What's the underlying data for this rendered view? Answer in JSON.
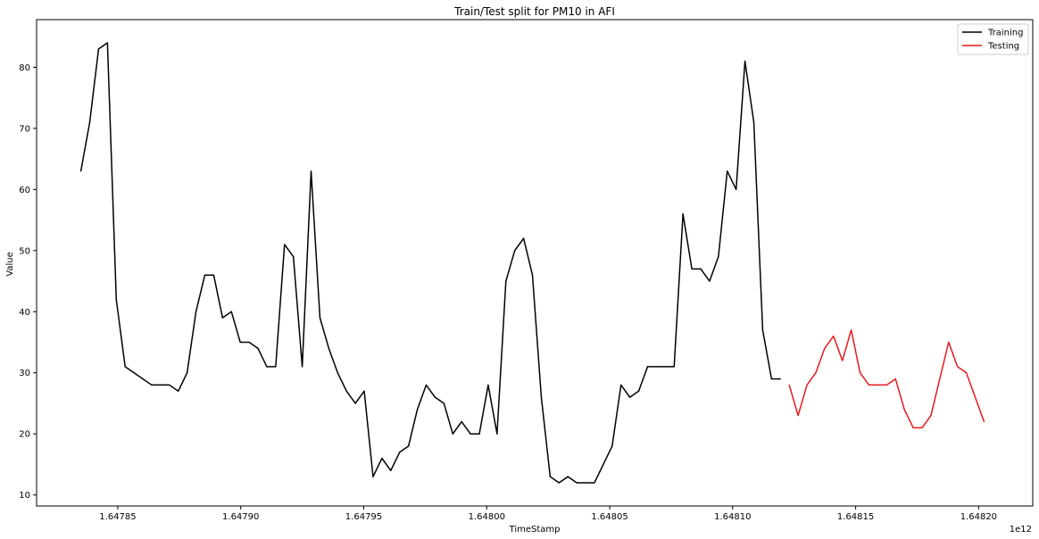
{
  "chart_data": {
    "type": "line",
    "title": "Train/Test split for PM10 in AFI",
    "xlabel": "TimeStamp",
    "ylabel": "Value",
    "x_offset_label": "1e12",
    "xlim": [
      1.647817,
      1.648222
    ],
    "ylim": [
      8.2,
      87.8
    ],
    "xticks": [
      1.64785,
      1.6479,
      1.64795,
      1.648,
      1.64805,
      1.6481,
      1.64815,
      1.6482
    ],
    "xtick_labels": [
      "1.64785",
      "1.64790",
      "1.64795",
      "1.64800",
      "1.64805",
      "1.64810",
      "1.64815",
      "1.64820"
    ],
    "yticks": [
      10,
      20,
      30,
      40,
      50,
      60,
      70,
      80
    ],
    "grid": false,
    "legend_position": "top-right",
    "series": [
      {
        "name": "Training",
        "color": "#000000",
        "x": [
          1.647835,
          1.6478386,
          1.6478422,
          1.6478458,
          1.6478494,
          1.647853,
          1.6478566,
          1.6478602,
          1.6478638,
          1.6478674,
          1.647871,
          1.6478746,
          1.6478782,
          1.6478818,
          1.6478854,
          1.647889,
          1.6478926,
          1.6478962,
          1.6478998,
          1.6479034,
          1.647907,
          1.6479106,
          1.6479142,
          1.6479178,
          1.6479214,
          1.647925,
          1.6479286,
          1.6479322,
          1.6479358,
          1.6479394,
          1.647943,
          1.6479466,
          1.6479502,
          1.6479538,
          1.6479574,
          1.647961,
          1.6479646,
          1.6479682,
          1.6479718,
          1.6479754,
          1.647979,
          1.6479826,
          1.6479862,
          1.6479898,
          1.6479934,
          1.647997,
          1.6480006,
          1.6480042,
          1.6480078,
          1.6480114,
          1.648015,
          1.6480186,
          1.6480222,
          1.6480258,
          1.6480294,
          1.648033,
          1.6480366,
          1.6480402,
          1.6480438,
          1.6480474,
          1.648051,
          1.6480546,
          1.6480582,
          1.6480618,
          1.6480654,
          1.648069,
          1.6480726,
          1.6480762,
          1.6480798,
          1.6480834,
          1.648087,
          1.6480906,
          1.6480942,
          1.6480978,
          1.6481014,
          1.648105,
          1.6481086,
          1.6481122,
          1.6481158,
          1.6481194
        ],
        "y": [
          63,
          71,
          83,
          84,
          42,
          31,
          30,
          29,
          28,
          28,
          28,
          27,
          30,
          40,
          46,
          46,
          39,
          40,
          35,
          35,
          34,
          31,
          31,
          51,
          49,
          31,
          63,
          39,
          34,
          30,
          27,
          25,
          27,
          13,
          16,
          14,
          17,
          18,
          24,
          28,
          26,
          25,
          20,
          22,
          20,
          20,
          28,
          20,
          45,
          50,
          52,
          46,
          26,
          13,
          12,
          13,
          12,
          12,
          12,
          15,
          18,
          28,
          26,
          27,
          31,
          31,
          31,
          31,
          56,
          47,
          47,
          45,
          49,
          63,
          60,
          81,
          71,
          37,
          29,
          29
        ]
      },
      {
        "name": "Testing",
        "color": "#e41a1c",
        "x": [
          1.648123,
          1.6481266,
          1.6481302,
          1.6481338,
          1.6481374,
          1.648141,
          1.6481446,
          1.6481482,
          1.6481518,
          1.6481554,
          1.648159,
          1.6481626,
          1.6481662,
          1.6481698,
          1.6481734,
          1.648177,
          1.6481806,
          1.6481842,
          1.6481878,
          1.6481914,
          1.648195,
          1.6481986,
          1.6482022
        ],
        "y": [
          28,
          23,
          28,
          30,
          34,
          36,
          32,
          37,
          30,
          28,
          28,
          28,
          29,
          24,
          21,
          21,
          23,
          29,
          35,
          31,
          30,
          26,
          22
        ]
      }
    ]
  }
}
